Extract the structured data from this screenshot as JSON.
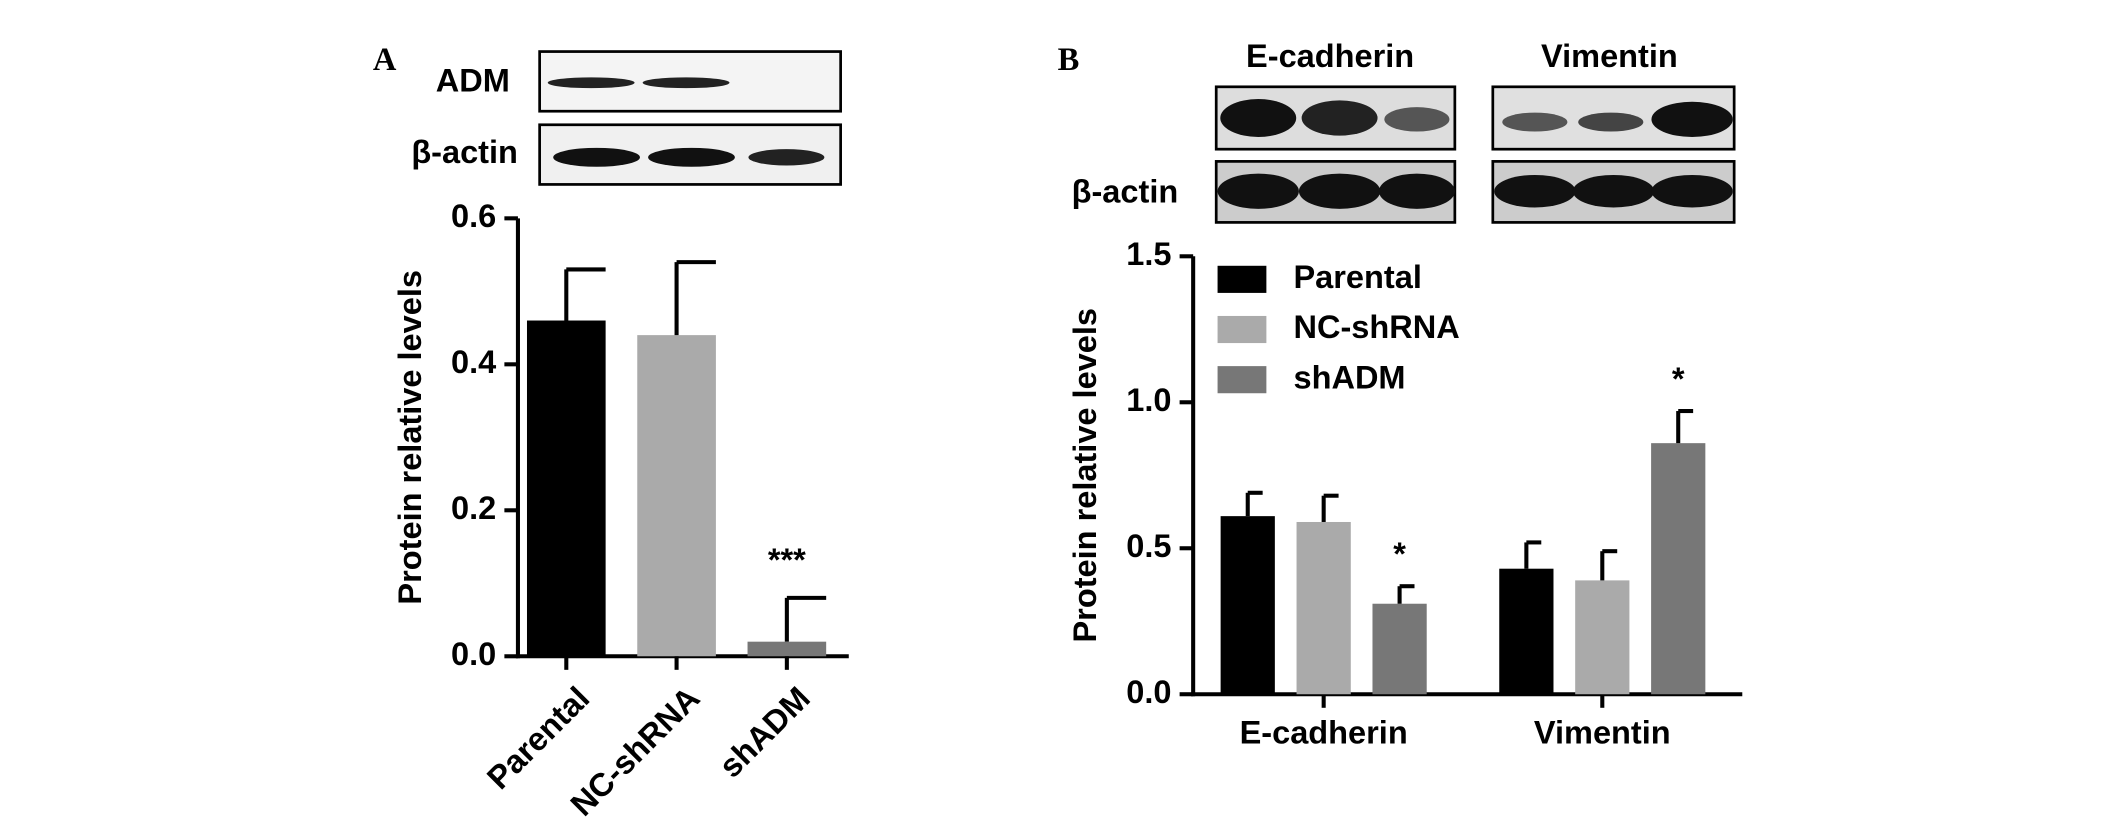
{
  "chart_data": [
    {
      "type": "bar",
      "panel_label": "A",
      "blot_labels": [
        "ADM",
        "β-actin"
      ],
      "ylabel": "Protein relative levels",
      "categories": [
        "Parental",
        "NC-shRNA",
        "shADM"
      ],
      "values": [
        0.46,
        0.44,
        0.02
      ],
      "errors": [
        0.07,
        0.1,
        0.06
      ],
      "colors": [
        "#000000",
        "#aaaaaa",
        "#777777"
      ],
      "ylim": [
        0,
        0.6
      ],
      "yticks": [
        {
          "value": 0,
          "label": "0.0"
        },
        0.2,
        0.4,
        0.6
      ],
      "annotations": [
        {
          "text": "***",
          "category": "shADM"
        }
      ]
    },
    {
      "type": "grouped_bar",
      "panel_label": "B",
      "blot_titles": [
        "E-cadherin",
        "Vimentin"
      ],
      "blot_labels": [
        "β-actin"
      ],
      "ylabel": "Protein relative levels",
      "categories": [
        "E-cadherin",
        "Vimentin"
      ],
      "series": [
        {
          "name": "Parental",
          "color": "#000000",
          "values": [
            0.61,
            0.43
          ],
          "errors": [
            0.08,
            0.09
          ]
        },
        {
          "name": "NC-shRNA",
          "color": "#aaaaaa",
          "values": [
            0.59,
            0.39
          ],
          "errors": [
            0.09,
            0.1
          ]
        },
        {
          "name": "shADM",
          "color": "#777777",
          "values": [
            0.31,
            0.86
          ],
          "errors": [
            0.06,
            0.11
          ]
        }
      ],
      "ylim": [
        0,
        1.5
      ],
      "yticks": [
        {
          "value": 0,
          "label": "0.0"
        },
        0.5,
        {
          "value": 1,
          "label": "1.0"
        },
        1.5
      ],
      "legend": "upper left",
      "annotations": [
        {
          "text": "*",
          "category": "E-cadherin",
          "series": "shADM"
        },
        {
          "text": "*",
          "category": "Vimentin",
          "series": "shADM"
        }
      ]
    }
  ]
}
